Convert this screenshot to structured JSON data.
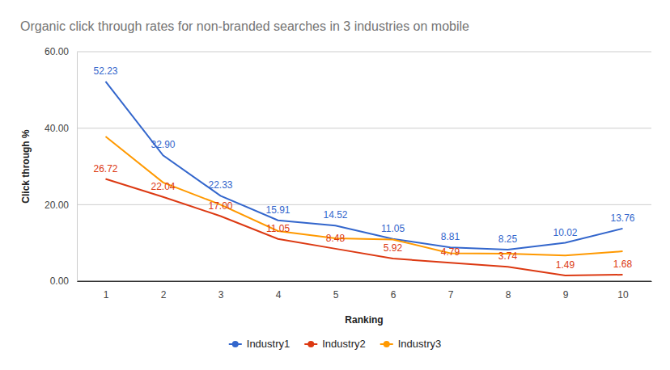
{
  "chart_data": {
    "type": "line",
    "title": "Organic click through rates for non-branded searches in 3 industries on mobile",
    "x_label": "Ranking",
    "y_label": "Click through %",
    "categories": [
      "1",
      "2",
      "3",
      "4",
      "5",
      "6",
      "7",
      "8",
      "9",
      "10"
    ],
    "ylim": [
      0,
      60
    ],
    "yticks": [
      {
        "value": 0,
        "label": "0.00"
      },
      {
        "value": 20,
        "label": "20.00"
      },
      {
        "value": 40,
        "label": "40.00"
      },
      {
        "value": 60,
        "label": "60.00"
      }
    ],
    "grid": true,
    "legend": "bottom",
    "series": [
      {
        "name": "Industry1",
        "color": "#3366cc",
        "data_labels": true,
        "values": [
          52.23,
          32.9,
          22.33,
          15.91,
          14.52,
          11.05,
          8.81,
          8.25,
          10.02,
          13.76
        ],
        "value_labels": [
          "52.23",
          "32.90",
          "22.33",
          "15.91",
          "14.52",
          "11.05",
          "8.81",
          "8.25",
          "10.02",
          "13.76"
        ]
      },
      {
        "name": "Industry2",
        "color": "#dc3912",
        "data_labels": true,
        "values": [
          26.72,
          22.04,
          17.0,
          11.05,
          8.48,
          5.92,
          4.79,
          3.74,
          1.49,
          1.68
        ],
        "value_labels": [
          "26.72",
          "22.04",
          "17.00",
          "11.05",
          "8.48",
          "5.92",
          "4.79",
          "3.74",
          "1.49",
          "1.68"
        ]
      },
      {
        "name": "Industry3",
        "color": "#ff9900",
        "data_labels": false,
        "values": [
          37.8,
          25.8,
          20.0,
          13.1,
          11.2,
          10.9,
          7.3,
          7.2,
          6.7,
          7.8
        ]
      }
    ]
  }
}
